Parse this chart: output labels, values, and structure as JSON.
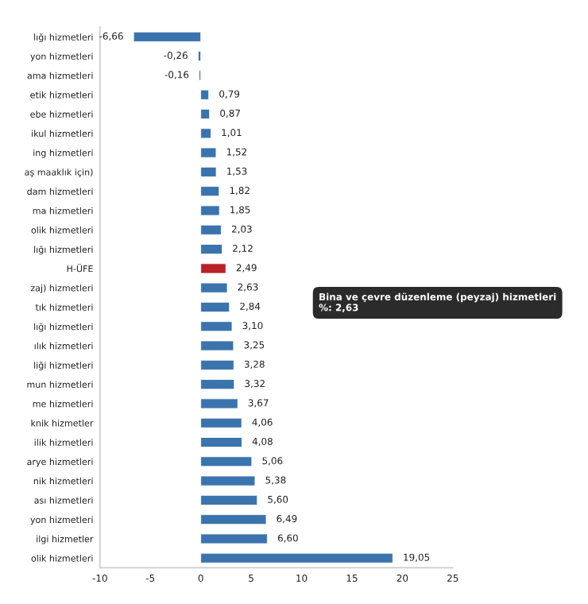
{
  "chart_data": {
    "type": "bar",
    "orientation": "horizontal",
    "categories": [
      "lığı hizmetleri",
      "yon hizmetleri",
      "ama hizmetleri",
      "etik hizmetleri",
      "ebe hizmetleri",
      "ikul hizmetleri",
      "ing hizmetleri",
      "aş maaklık için)",
      "dam hizmetleri",
      "ma hizmetleri",
      "olik hizmetleri",
      "lığı hizmetleri",
      "H-ÜFE",
      "zaj) hizmetleri",
      "tık hizmetleri",
      "lığı hizmetleri",
      "ılık hizmetleri",
      "liği hizmetleri",
      "mun hizmetleri",
      "me hizmetleri",
      "knik hizmetler",
      "ilik hizmetleri",
      "arye hizmetleri",
      "nik hizmetleri",
      "ası hizmetleri",
      "yon hizmetleri",
      "ilgi hizmetler",
      "olik hizmetleri"
    ],
    "values": [
      -6.66,
      -0.26,
      -0.16,
      0.79,
      0.87,
      1.01,
      1.52,
      1.53,
      1.82,
      1.85,
      2.03,
      2.12,
      2.49,
      2.63,
      2.84,
      3.1,
      3.25,
      3.28,
      3.32,
      3.67,
      4.06,
      4.08,
      5.06,
      5.38,
      5.6,
      6.49,
      6.6,
      19.05
    ],
    "value_labels": [
      "-6,66",
      "-0,26",
      "-0,16",
      "0,79",
      "0,87",
      "1,01",
      "1,52",
      "1,53",
      "1,82",
      "1,85",
      "2,03",
      "2,12",
      "2,49",
      "2,63",
      "2,84",
      "3,10",
      "3,25",
      "3,28",
      "3,32",
      "3,67",
      "4,06",
      "4,08",
      "5,06",
      "5,38",
      "5,60",
      "6,49",
      "6,60",
      "19,05"
    ],
    "colors": [
      "#3b73ad",
      "#3b73ad",
      "#3b73ad",
      "#3b73ad",
      "#3b73ad",
      "#3b73ad",
      "#3b73ad",
      "#3b73ad",
      "#3b73ad",
      "#3b73ad",
      "#3b73ad",
      "#3b73ad",
      "#b8202a",
      "#3b73ad",
      "#3b73ad",
      "#3b73ad",
      "#3b73ad",
      "#3b73ad",
      "#3b73ad",
      "#3b73ad",
      "#3b73ad",
      "#3b73ad",
      "#3b73ad",
      "#3b73ad",
      "#3b73ad",
      "#3b73ad",
      "#3b73ad",
      "#3b73ad"
    ],
    "xlim": [
      -10,
      25
    ],
    "xticks": [
      -10,
      -5,
      0,
      5,
      10,
      15,
      20,
      25
    ],
    "annotations": [
      "Bina ve çevre düzenleme (peyzaj) hizmetleri\n%: 2,63"
    ],
    "grid": false,
    "legend": false
  }
}
